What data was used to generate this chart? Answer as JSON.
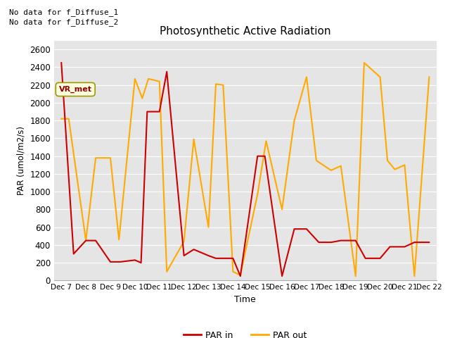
{
  "title": "Photosynthetic Active Radiation",
  "xlabel": "Time",
  "ylabel": "PAR (umol/m2/s)",
  "text_top_left_line1": "No data for f_Diffuse_1",
  "text_top_left_line2": "No data for f_Diffuse_2",
  "legend_box_label": "VR_met",
  "par_in_color": "#cc0000",
  "par_out_color": "#ffaa00",
  "ylim": [
    0,
    2700
  ],
  "background_color": "#e5e5e5",
  "grid_color": "white",
  "fig_background": "#ffffff",
  "par_in_x": [
    7,
    7.5,
    8,
    8.4,
    9,
    9.4,
    10,
    10.25,
    10.5,
    11,
    11.3,
    12,
    12.4,
    13,
    13.3,
    14,
    14.3,
    15,
    15.3,
    16,
    16.5,
    17,
    17.5,
    18,
    18.4,
    19,
    19.4,
    20,
    20.4,
    21,
    21.4,
    22
  ],
  "par_in_y": [
    2450,
    300,
    450,
    450,
    210,
    210,
    230,
    200,
    1900,
    1900,
    2350,
    280,
    350,
    280,
    250,
    250,
    50,
    1400,
    1400,
    50,
    580,
    580,
    430,
    430,
    450,
    450,
    250,
    250,
    380,
    380,
    430,
    430
  ],
  "par_out_x": [
    7,
    7.3,
    8,
    8.4,
    9,
    9.35,
    10,
    10.3,
    10.55,
    11,
    11.3,
    12,
    12.4,
    13,
    13.3,
    13.6,
    14,
    14.3,
    15,
    15.35,
    16,
    16.5,
    17,
    17.4,
    18,
    18.4,
    19,
    19.35,
    20,
    20.3,
    20.6,
    21,
    21.4,
    22
  ],
  "par_out_y": [
    1820,
    1820,
    450,
    1380,
    1380,
    460,
    2270,
    2050,
    2270,
    2240,
    100,
    440,
    1590,
    600,
    2210,
    2200,
    100,
    60,
    970,
    1570,
    800,
    1800,
    2290,
    1350,
    1240,
    1290,
    50,
    2450,
    2290,
    1350,
    1250,
    1300,
    50,
    2290
  ],
  "x_tick_positions": [
    7,
    8,
    9,
    10,
    11,
    12,
    13,
    14,
    15,
    16,
    17,
    18,
    19,
    20,
    21,
    22
  ],
  "x_tick_labels": [
    "Dec 7",
    "Dec 8",
    "Dec 9",
    "Dec 10",
    "Dec 11",
    "Dec 12",
    "Dec 13",
    "Dec 14",
    "Dec 15",
    "Dec 16",
    "Dec 17",
    "Dec 18",
    "Dec 19",
    "Dec 20",
    "Dec 21",
    "Dec 22"
  ],
  "yticks": [
    0,
    200,
    400,
    600,
    800,
    1000,
    1200,
    1400,
    1600,
    1800,
    2000,
    2200,
    2400,
    2600
  ]
}
